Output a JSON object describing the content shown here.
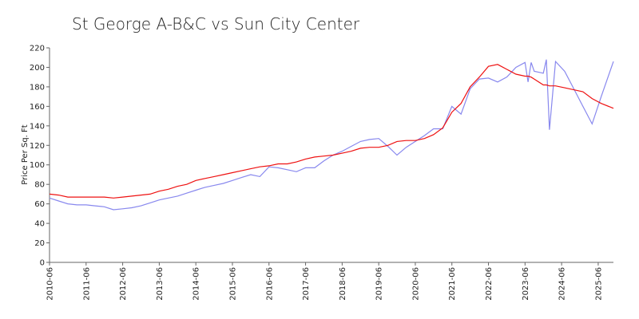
{
  "chart_data": {
    "type": "line",
    "title": "St George A-B&C vs Sun City Center",
    "ylabel": "Price Per Sq. Ft",
    "x": [
      "2010-06",
      "2010-09",
      "2010-12",
      "2011-03",
      "2011-06",
      "2011-09",
      "2011-12",
      "2012-03",
      "2012-06",
      "2012-09",
      "2012-12",
      "2013-03",
      "2013-06",
      "2013-09",
      "2013-12",
      "2014-03",
      "2014-06",
      "2014-09",
      "2014-12",
      "2015-03",
      "2015-06",
      "2015-09",
      "2015-12",
      "2016-03",
      "2016-06",
      "2016-09",
      "2016-12",
      "2017-03",
      "2017-06",
      "2017-09",
      "2017-12",
      "2018-03",
      "2018-06",
      "2018-09",
      "2018-12",
      "2019-03",
      "2019-06",
      "2019-09",
      "2019-12",
      "2020-03",
      "2020-06",
      "2020-09",
      "2020-12",
      "2021-03",
      "2021-06",
      "2021-09",
      "2021-12",
      "2022-03",
      "2022-06",
      "2022-09",
      "2022-12",
      "2023-03",
      "2023-06",
      "2023-07",
      "2023-08",
      "2023-09",
      "2023-12",
      "2024-01",
      "2024-02",
      "2024-04",
      "2024-07",
      "2024-10",
      "2025-01",
      "2025-04",
      "2025-07",
      "2025-11"
    ],
    "series": [
      {
        "color": "#8888ee",
        "values": [
          66,
          63,
          60,
          59,
          59,
          58,
          57,
          54,
          55,
          56,
          58,
          61,
          64,
          66,
          68,
          71,
          74,
          77,
          79,
          81,
          84,
          87,
          90,
          88,
          98,
          97,
          95,
          93,
          97,
          97,
          104,
          110,
          114,
          119,
          124,
          126,
          127,
          119,
          110,
          118,
          124,
          130,
          137,
          137,
          160,
          152,
          178,
          188,
          189,
          185,
          190,
          200,
          205,
          185,
          205,
          196,
          194,
          208,
          136,
          206,
          196,
          178,
          160,
          142,
          170,
          206
        ]
      },
      {
        "color": "#ee1111",
        "values": [
          70,
          69,
          67,
          67,
          67,
          67,
          67,
          66,
          67,
          68,
          69,
          70,
          73,
          75,
          78,
          80,
          84,
          86,
          88,
          90,
          92,
          94,
          96,
          98,
          99,
          101,
          101,
          103,
          106,
          108,
          109,
          110,
          112,
          114,
          117,
          118,
          118,
          120,
          124,
          125,
          125,
          127,
          131,
          138,
          154,
          163,
          180,
          190,
          201,
          203,
          198,
          193,
          191,
          191,
          190,
          188,
          182,
          182,
          181,
          181,
          179,
          177,
          175,
          168,
          163,
          158
        ]
      }
    ],
    "xlim": [
      "2010-06",
      "2025-11"
    ],
    "xticks": [
      "2010-06",
      "2011-06",
      "2012-06",
      "2013-06",
      "2014-06",
      "2015-06",
      "2016-06",
      "2017-06",
      "2018-06",
      "2019-06",
      "2020-06",
      "2021-06",
      "2022-06",
      "2023-06",
      "2024-06",
      "2025-06"
    ],
    "ylim": [
      0,
      220
    ],
    "yticks": [
      0,
      20,
      40,
      60,
      80,
      100,
      120,
      140,
      160,
      180,
      200,
      220
    ]
  }
}
